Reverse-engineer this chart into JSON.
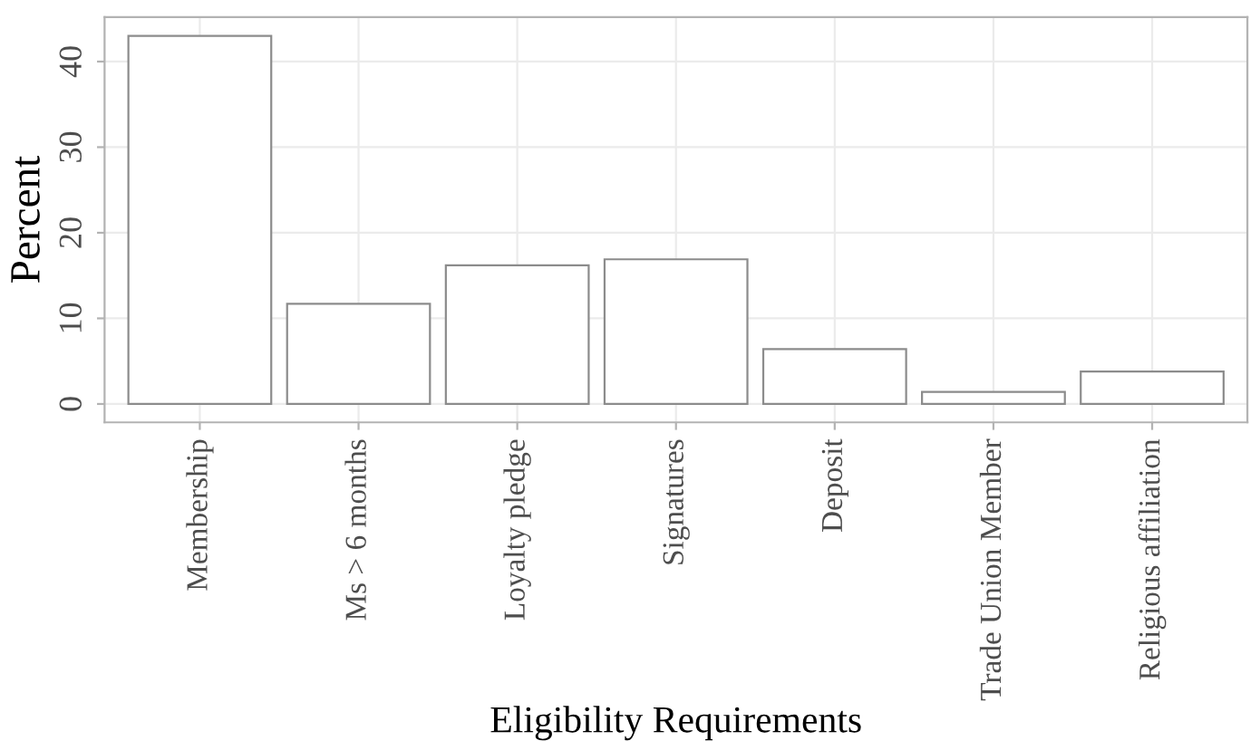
{
  "chart_data": {
    "type": "bar",
    "xlabel": "Eligibility Requirements",
    "ylabel": "Percent",
    "categories": [
      "Membership",
      "Ms > 6 months",
      "Loyalty pledge",
      "Signatures",
      "Deposit",
      "Trade Union Member",
      "Religious affiliation"
    ],
    "values": [
      43.0,
      11.7,
      16.2,
      16.9,
      6.4,
      1.4,
      3.8
    ],
    "color": "#ffffff",
    "ylim": [
      -2.15,
      45.2
    ],
    "yticks": [
      0,
      10,
      20,
      30,
      40
    ],
    "grid": true
  }
}
